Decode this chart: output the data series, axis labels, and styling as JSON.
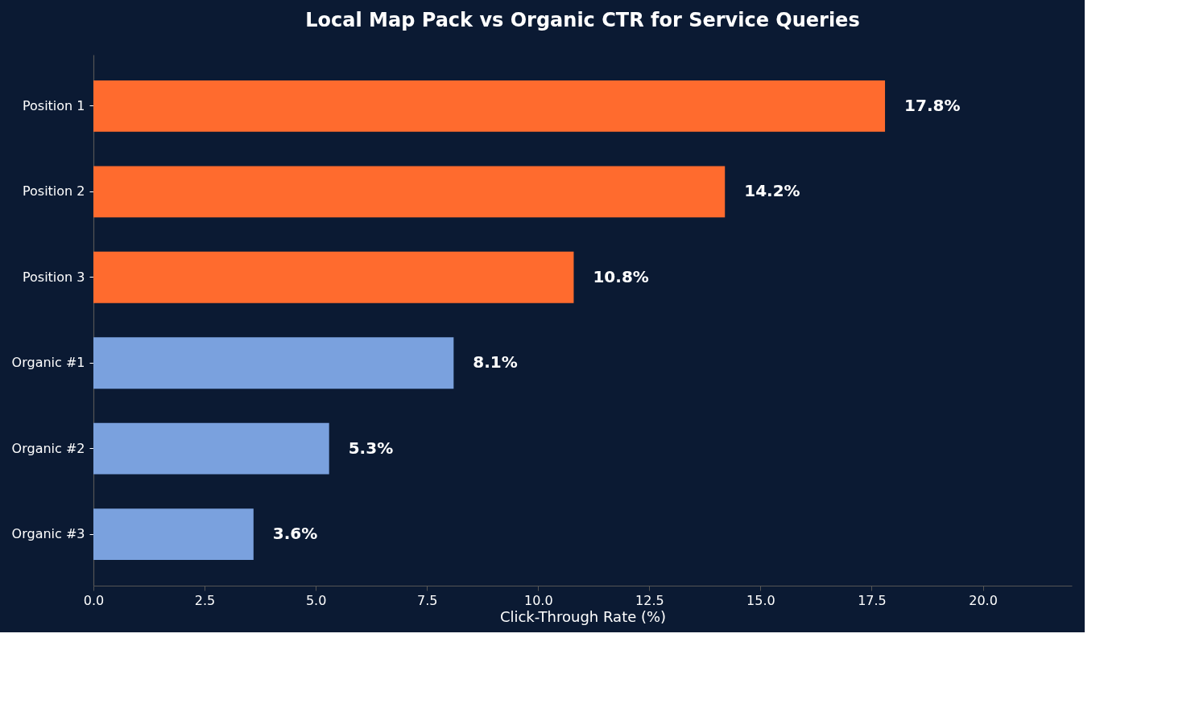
{
  "chart_data": {
    "type": "bar",
    "orientation": "horizontal",
    "title": "Local Map Pack vs Organic CTR for Service Queries",
    "xlabel": "Click-Through Rate (%)",
    "categories": [
      "Position 1",
      "Position 2",
      "Position 3",
      "Organic #1",
      "Organic #2",
      "Organic #3"
    ],
    "values": [
      17.8,
      14.2,
      10.8,
      8.1,
      5.3,
      3.6
    ],
    "value_labels": [
      "17.8%",
      "14.2%",
      "10.8%",
      "8.1%",
      "5.3%",
      "3.6%"
    ],
    "colors": [
      "#ff6b2e",
      "#ff6b2e",
      "#ff6b2e",
      "#7aa1de",
      "#7aa1de",
      "#7aa1de"
    ],
    "xlim": [
      0,
      22
    ],
    "xticks": [
      {
        "value": 0,
        "label": "0.0"
      },
      {
        "value": 2.5,
        "label": "2.5"
      },
      {
        "value": 5,
        "label": "5.0"
      },
      {
        "value": 7.5,
        "label": "7.5"
      },
      {
        "value": 10,
        "label": "10.0"
      },
      {
        "value": 12.5,
        "label": "12.5"
      },
      {
        "value": 15,
        "label": "15.0"
      },
      {
        "value": 17.5,
        "label": "17.5"
      },
      {
        "value": 20,
        "label": "20.0"
      }
    ],
    "grid": false
  }
}
